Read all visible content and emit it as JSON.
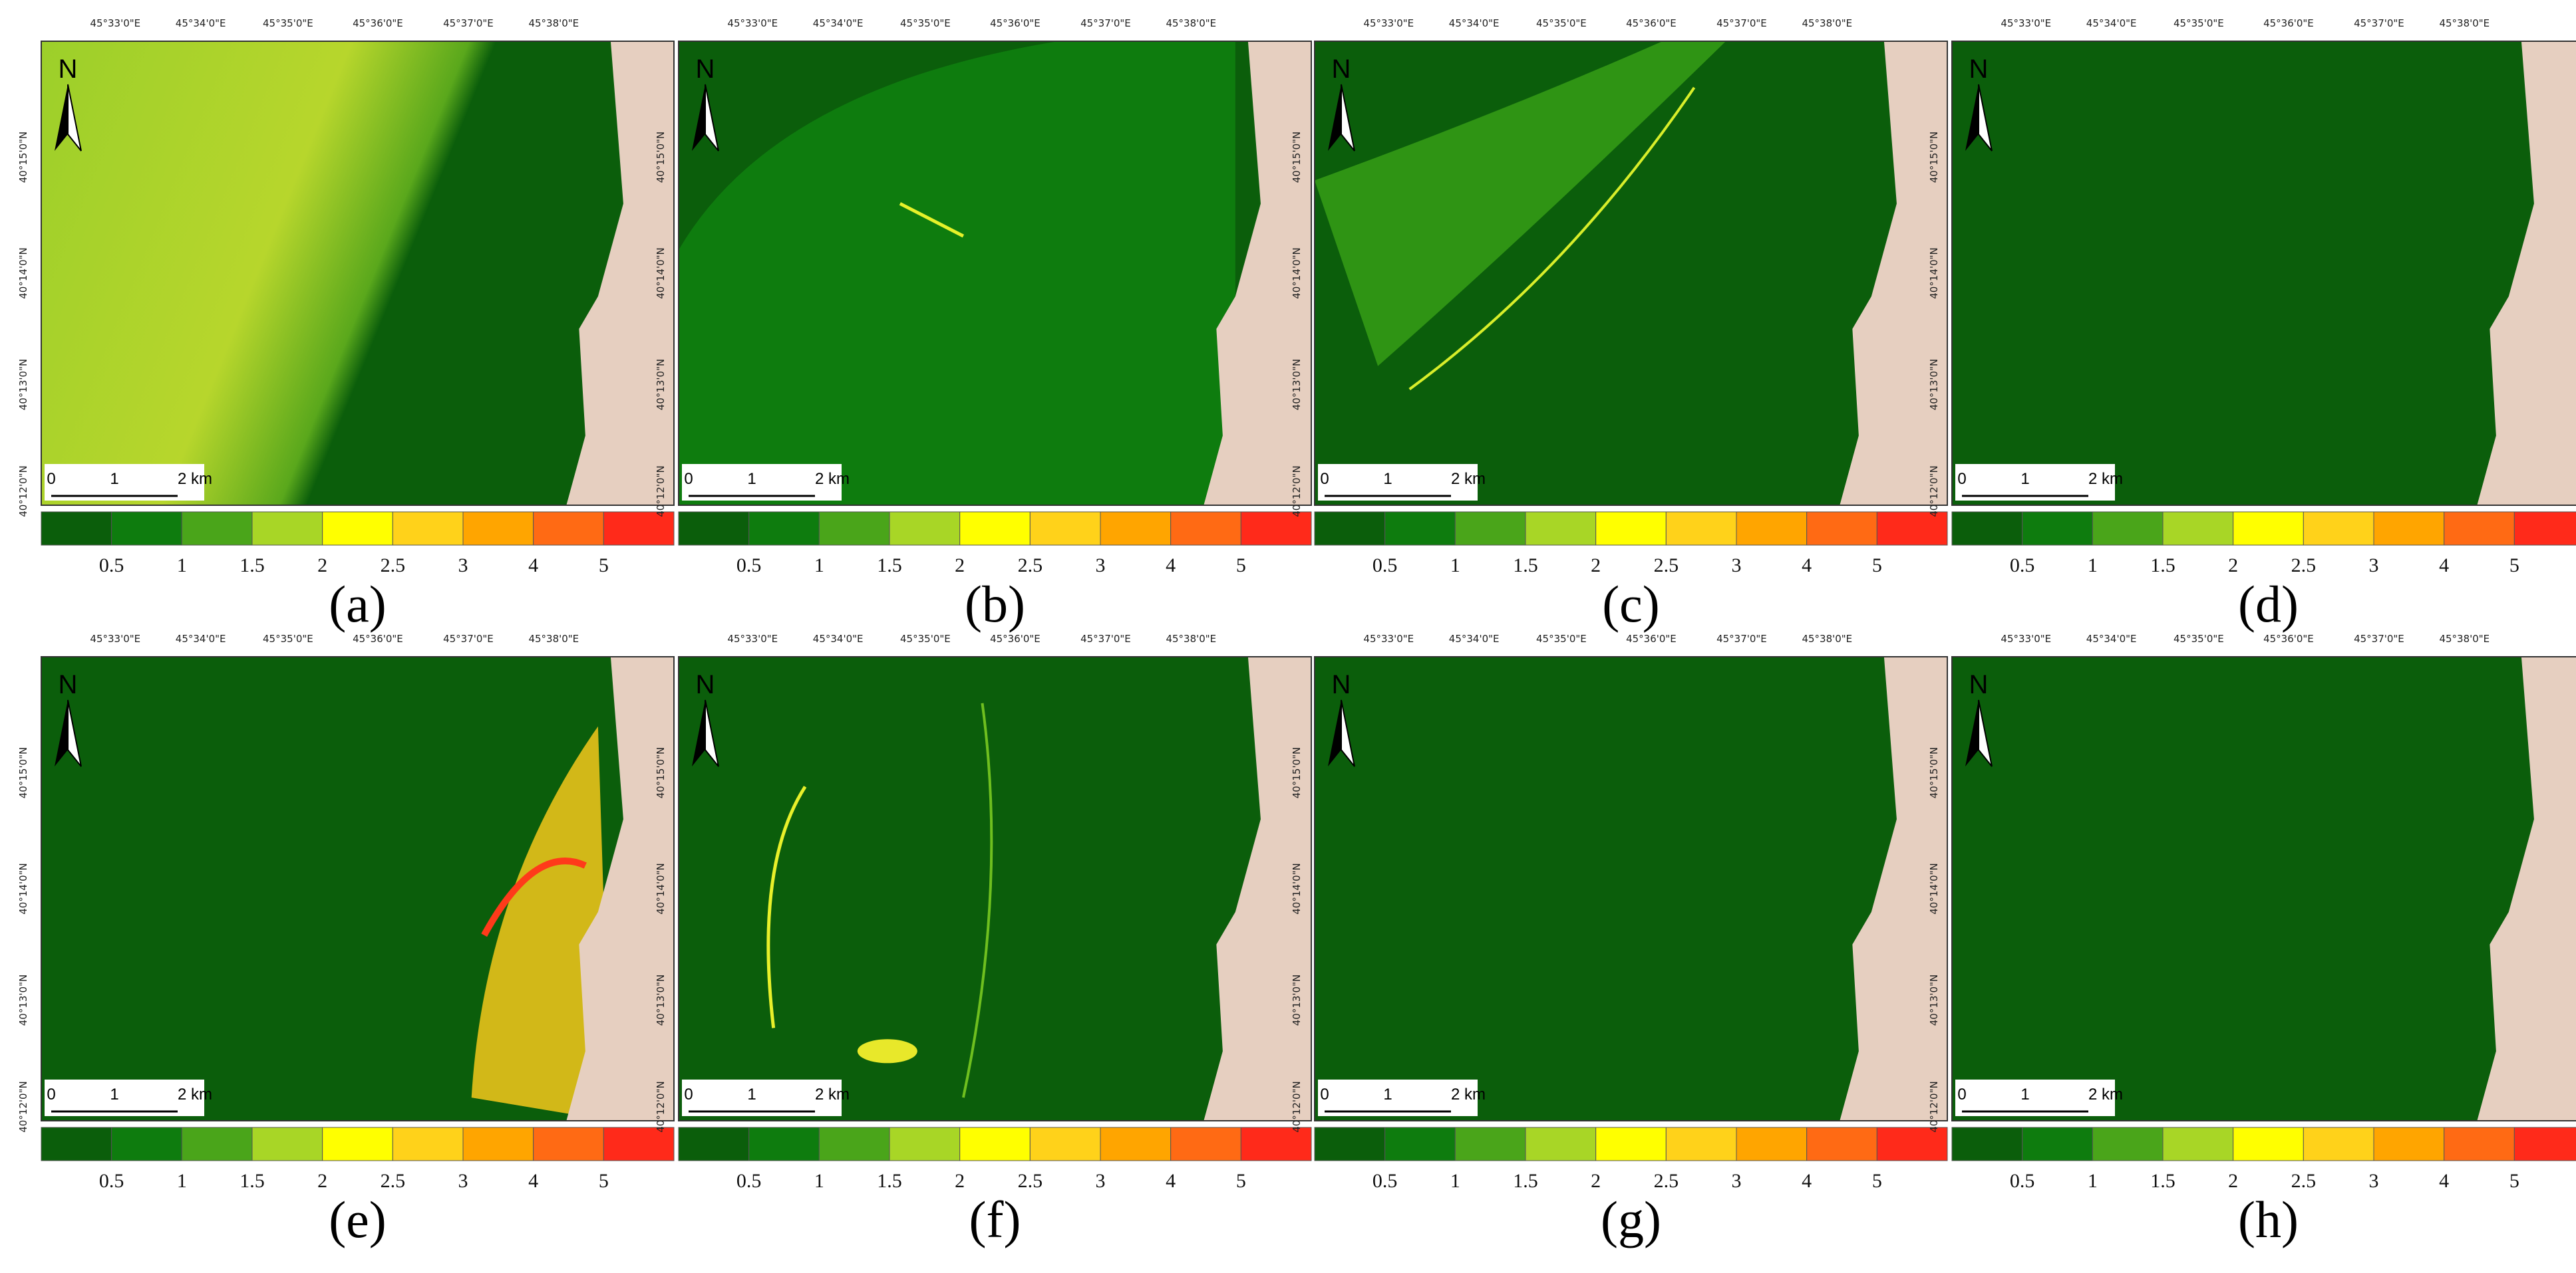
{
  "lon_labels": [
    "45°33'0\"E",
    "45°34'0\"E",
    "45°35'0\"E",
    "45°36'0\"E",
    "45°37'0\"E",
    "45°38'0\"E"
  ],
  "lat_labels": [
    "40°15'0\"N",
    "40°14'0\"N",
    "40°13'0\"N",
    "40°12'0\"N"
  ],
  "north": "N",
  "scale_bar": [
    "0",
    "1",
    "2 km"
  ],
  "legend": {
    "colors": [
      "#0b5e0b",
      "#0e7c0e",
      "#4aa51a",
      "#a8d626",
      "#ffff00",
      "#ffd21a",
      "#ffa500",
      "#ff6a14",
      "#ff2a1a"
    ],
    "labels": [
      "0.5",
      "1",
      "1.5",
      "2",
      "2.5",
      "3",
      "4",
      "5"
    ]
  },
  "panels": [
    "(a)",
    "(b)",
    "(c)",
    "(d)",
    "(e)",
    "(f)",
    "(g)",
    "(h)"
  ]
}
